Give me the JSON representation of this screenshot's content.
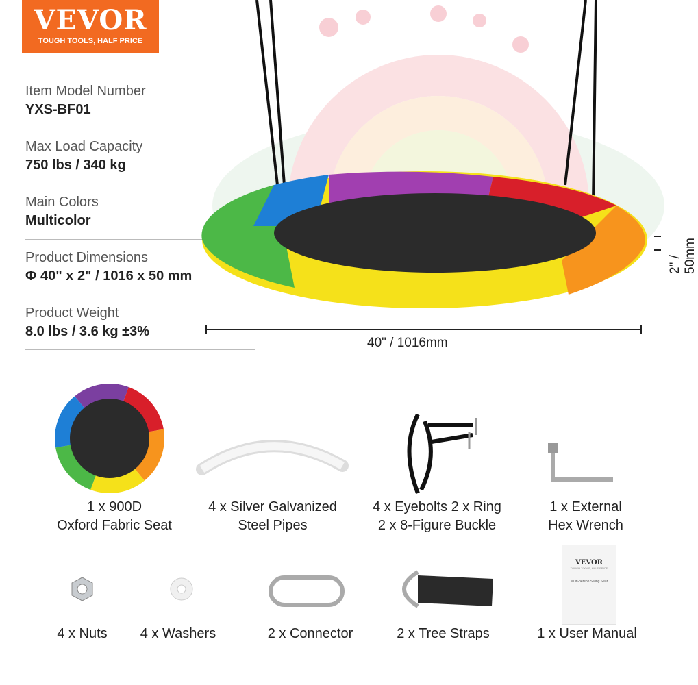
{
  "logo": {
    "brand": "VEVOR",
    "tagline": "TOUGH TOOLS, HALF PRICE",
    "color": "#f26a21"
  },
  "specs": [
    {
      "label": "Item Model Number",
      "value": "YXS-BF01"
    },
    {
      "label": "Max Load Capacity",
      "value": "750 lbs / 340 kg"
    },
    {
      "label": "Main Colors",
      "value": "Multicolor"
    },
    {
      "label": "Product Dimensions",
      "value": "Φ 40\" x 2\" / 1016 x 50 mm"
    },
    {
      "label": "Product Weight",
      "value": "8.0 lbs / 3.6 kg ±3%"
    }
  ],
  "dimensions": {
    "width": "40\" / 1016mm",
    "height": "2\" / 50mm"
  },
  "parts_row1": [
    {
      "line1": "1 x 900D",
      "line2": "Oxford Fabric Seat"
    },
    {
      "line1": "4 x Silver Galvanized",
      "line2": "Steel Pipes"
    },
    {
      "line1": "4 x Eyebolts  2 x Ring",
      "line2": "2 x 8-Figure Buckle"
    },
    {
      "line1": "1 x External",
      "line2": "Hex Wrench"
    }
  ],
  "parts_row2": [
    "4 x Nuts",
    "4 x Washers",
    "2 x Connector",
    "2 x Tree Straps",
    "1 x User Manual"
  ],
  "manual": {
    "brand": "VEVOR",
    "tagline": "TOUGH TOOLS, HALF PRICE",
    "title": "Multi-person Swing Seat"
  },
  "seat_colors": [
    "#7b3fa0",
    "#d81f2a",
    "#f7941d",
    "#f5e11a",
    "#4cb847",
    "#1e7fd6"
  ]
}
